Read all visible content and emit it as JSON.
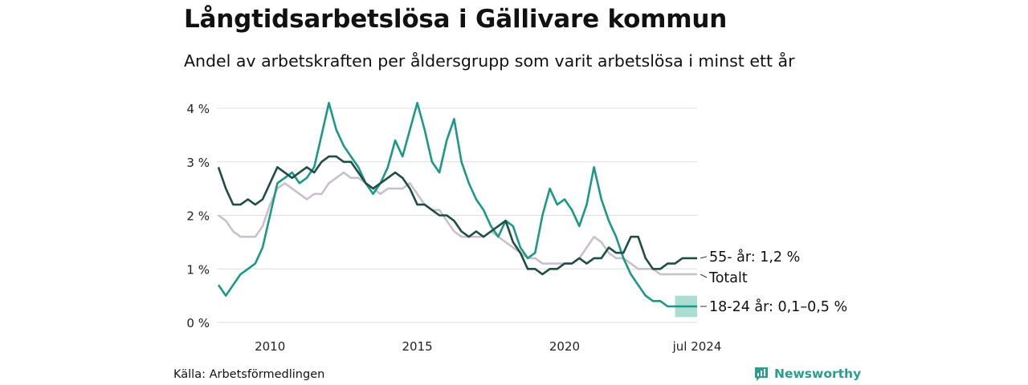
{
  "header": {
    "title": "Långtidsarbetslösa i Gällivare kommun",
    "subtitle": "Andel av arbetskraften per åldersgrupp som varit arbetslösa i minst ett år"
  },
  "footer": {
    "source": "Källa: Arbetsförmedlingen",
    "brand": "Newsworthy"
  },
  "colors": {
    "age55": "#1f4e46",
    "total": "#c9c0cd",
    "age1824": "#1a9985",
    "band": "#8fd3c4",
    "grid": "#dddddd",
    "brand": "#2a9d8f"
  },
  "chart_data": {
    "type": "line",
    "title": "Långtidsarbetslösa i Gällivare kommun",
    "subtitle": "Andel av arbetskraften per åldersgrupp som varit arbetslösa i minst ett år",
    "xlabel": "",
    "ylabel": "",
    "x_range": [
      2008.25,
      2024.5
    ],
    "ylim": [
      0,
      4.3
    ],
    "y_ticks": [
      0,
      1,
      2,
      3,
      4
    ],
    "y_tick_labels": [
      "0 %",
      "1 %",
      "2 %",
      "3 %",
      "4 %"
    ],
    "x_ticks": [
      2010,
      2015,
      2020,
      2024.5
    ],
    "x_tick_labels": [
      "2010",
      "2015",
      "2020",
      "jul 2024"
    ],
    "grid": "horizontal",
    "series": [
      {
        "name": "Totalt",
        "label": "Totalt",
        "color": "#c9c0cd",
        "points": [
          [
            2008.25,
            2.0
          ],
          [
            2008.5,
            1.9
          ],
          [
            2008.75,
            1.7
          ],
          [
            2009.0,
            1.6
          ],
          [
            2009.25,
            1.6
          ],
          [
            2009.5,
            1.6
          ],
          [
            2009.75,
            1.8
          ],
          [
            2010.0,
            2.2
          ],
          [
            2010.25,
            2.5
          ],
          [
            2010.5,
            2.6
          ],
          [
            2010.75,
            2.5
          ],
          [
            2011.0,
            2.4
          ],
          [
            2011.25,
            2.3
          ],
          [
            2011.5,
            2.4
          ],
          [
            2011.75,
            2.4
          ],
          [
            2012.0,
            2.6
          ],
          [
            2012.25,
            2.7
          ],
          [
            2012.5,
            2.8
          ],
          [
            2012.75,
            2.7
          ],
          [
            2013.0,
            2.7
          ],
          [
            2013.25,
            2.6
          ],
          [
            2013.5,
            2.5
          ],
          [
            2013.75,
            2.4
          ],
          [
            2014.0,
            2.5
          ],
          [
            2014.25,
            2.5
          ],
          [
            2014.5,
            2.5
          ],
          [
            2014.75,
            2.6
          ],
          [
            2015.0,
            2.4
          ],
          [
            2015.25,
            2.2
          ],
          [
            2015.5,
            2.1
          ],
          [
            2015.75,
            2.1
          ],
          [
            2016.0,
            1.9
          ],
          [
            2016.25,
            1.7
          ],
          [
            2016.5,
            1.6
          ],
          [
            2016.75,
            1.6
          ],
          [
            2017.0,
            1.6
          ],
          [
            2017.25,
            1.6
          ],
          [
            2017.5,
            1.7
          ],
          [
            2017.75,
            1.6
          ],
          [
            2018.0,
            1.5
          ],
          [
            2018.25,
            1.4
          ],
          [
            2018.5,
            1.3
          ],
          [
            2018.75,
            1.2
          ],
          [
            2019.0,
            1.2
          ],
          [
            2019.25,
            1.1
          ],
          [
            2019.5,
            1.1
          ],
          [
            2019.75,
            1.1
          ],
          [
            2020.0,
            1.1
          ],
          [
            2020.25,
            1.1
          ],
          [
            2020.5,
            1.2
          ],
          [
            2020.75,
            1.4
          ],
          [
            2021.0,
            1.6
          ],
          [
            2021.25,
            1.5
          ],
          [
            2021.5,
            1.3
          ],
          [
            2021.75,
            1.2
          ],
          [
            2022.0,
            1.2
          ],
          [
            2022.25,
            1.1
          ],
          [
            2022.5,
            1.0
          ],
          [
            2022.75,
            1.0
          ],
          [
            2023.0,
            1.0
          ],
          [
            2023.25,
            0.9
          ],
          [
            2023.5,
            0.9
          ],
          [
            2023.75,
            0.9
          ],
          [
            2024.0,
            0.9
          ],
          [
            2024.25,
            0.9
          ],
          [
            2024.5,
            0.9
          ]
        ]
      },
      {
        "name": "18-24 år",
        "label": "18-24 år: 0,1–0,5 %",
        "color": "#1a9985",
        "points": [
          [
            2008.25,
            0.7
          ],
          [
            2008.5,
            0.5
          ],
          [
            2008.75,
            0.7
          ],
          [
            2009.0,
            0.9
          ],
          [
            2009.25,
            1.0
          ],
          [
            2009.5,
            1.1
          ],
          [
            2009.75,
            1.4
          ],
          [
            2010.0,
            2.0
          ],
          [
            2010.25,
            2.6
          ],
          [
            2010.5,
            2.7
          ],
          [
            2010.75,
            2.8
          ],
          [
            2011.0,
            2.6
          ],
          [
            2011.25,
            2.7
          ],
          [
            2011.5,
            2.9
          ],
          [
            2011.75,
            3.5
          ],
          [
            2012.0,
            4.1
          ],
          [
            2012.25,
            3.6
          ],
          [
            2012.5,
            3.3
          ],
          [
            2012.75,
            3.1
          ],
          [
            2013.0,
            2.9
          ],
          [
            2013.25,
            2.6
          ],
          [
            2013.5,
            2.4
          ],
          [
            2013.75,
            2.6
          ],
          [
            2014.0,
            2.9
          ],
          [
            2014.25,
            3.4
          ],
          [
            2014.5,
            3.1
          ],
          [
            2014.75,
            3.6
          ],
          [
            2015.0,
            4.1
          ],
          [
            2015.25,
            3.6
          ],
          [
            2015.5,
            3.0
          ],
          [
            2015.75,
            2.8
          ],
          [
            2016.0,
            3.4
          ],
          [
            2016.25,
            3.8
          ],
          [
            2016.5,
            3.0
          ],
          [
            2016.75,
            2.6
          ],
          [
            2017.0,
            2.3
          ],
          [
            2017.25,
            2.1
          ],
          [
            2017.5,
            1.8
          ],
          [
            2017.75,
            1.6
          ],
          [
            2018.0,
            1.9
          ],
          [
            2018.25,
            1.8
          ],
          [
            2018.5,
            1.4
          ],
          [
            2018.75,
            1.2
          ],
          [
            2019.0,
            1.3
          ],
          [
            2019.25,
            2.0
          ],
          [
            2019.5,
            2.5
          ],
          [
            2019.75,
            2.2
          ],
          [
            2020.0,
            2.3
          ],
          [
            2020.25,
            2.1
          ],
          [
            2020.5,
            1.8
          ],
          [
            2020.75,
            2.2
          ],
          [
            2021.0,
            2.9
          ],
          [
            2021.25,
            2.3
          ],
          [
            2021.5,
            1.9
          ],
          [
            2021.75,
            1.6
          ],
          [
            2022.0,
            1.2
          ],
          [
            2022.25,
            0.9
          ],
          [
            2022.5,
            0.7
          ],
          [
            2022.75,
            0.5
          ],
          [
            2023.0,
            0.4
          ],
          [
            2023.25,
            0.4
          ],
          [
            2023.5,
            0.3
          ],
          [
            2023.75,
            0.3
          ],
          [
            2024.0,
            0.3
          ],
          [
            2024.25,
            0.3
          ],
          [
            2024.5,
            0.3
          ]
        ]
      },
      {
        "name": "55- år",
        "label": "55- år: 1,2 %",
        "color": "#1f4e46",
        "points": [
          [
            2008.25,
            2.9
          ],
          [
            2008.5,
            2.5
          ],
          [
            2008.75,
            2.2
          ],
          [
            2009.0,
            2.2
          ],
          [
            2009.25,
            2.3
          ],
          [
            2009.5,
            2.2
          ],
          [
            2009.75,
            2.3
          ],
          [
            2010.0,
            2.6
          ],
          [
            2010.25,
            2.9
          ],
          [
            2010.5,
            2.8
          ],
          [
            2010.75,
            2.7
          ],
          [
            2011.0,
            2.8
          ],
          [
            2011.25,
            2.9
          ],
          [
            2011.5,
            2.8
          ],
          [
            2011.75,
            3.0
          ],
          [
            2012.0,
            3.1
          ],
          [
            2012.25,
            3.1
          ],
          [
            2012.5,
            3.0
          ],
          [
            2012.75,
            3.0
          ],
          [
            2013.0,
            2.8
          ],
          [
            2013.25,
            2.6
          ],
          [
            2013.5,
            2.5
          ],
          [
            2013.75,
            2.6
          ],
          [
            2014.0,
            2.7
          ],
          [
            2014.25,
            2.8
          ],
          [
            2014.5,
            2.7
          ],
          [
            2014.75,
            2.5
          ],
          [
            2015.0,
            2.2
          ],
          [
            2015.25,
            2.2
          ],
          [
            2015.5,
            2.1
          ],
          [
            2015.75,
            2.0
          ],
          [
            2016.0,
            2.0
          ],
          [
            2016.25,
            1.9
          ],
          [
            2016.5,
            1.7
          ],
          [
            2016.75,
            1.6
          ],
          [
            2017.0,
            1.7
          ],
          [
            2017.25,
            1.6
          ],
          [
            2017.5,
            1.7
          ],
          [
            2017.75,
            1.8
          ],
          [
            2018.0,
            1.9
          ],
          [
            2018.25,
            1.5
          ],
          [
            2018.5,
            1.3
          ],
          [
            2018.75,
            1.0
          ],
          [
            2019.0,
            1.0
          ],
          [
            2019.25,
            0.9
          ],
          [
            2019.5,
            1.0
          ],
          [
            2019.75,
            1.0
          ],
          [
            2020.0,
            1.1
          ],
          [
            2020.25,
            1.1
          ],
          [
            2020.5,
            1.2
          ],
          [
            2020.75,
            1.1
          ],
          [
            2021.0,
            1.2
          ],
          [
            2021.25,
            1.2
          ],
          [
            2021.5,
            1.4
          ],
          [
            2021.75,
            1.3
          ],
          [
            2022.0,
            1.3
          ],
          [
            2022.25,
            1.6
          ],
          [
            2022.5,
            1.6
          ],
          [
            2022.75,
            1.2
          ],
          [
            2023.0,
            1.0
          ],
          [
            2023.25,
            1.0
          ],
          [
            2023.5,
            1.1
          ],
          [
            2023.75,
            1.1
          ],
          [
            2024.0,
            1.2
          ],
          [
            2024.25,
            1.2
          ],
          [
            2024.5,
            1.2
          ]
        ]
      }
    ],
    "uncertainty_band": {
      "series": "18-24 år",
      "x": [
        2023.75,
        2024.5
      ],
      "low": 0.1,
      "high": 0.5
    }
  }
}
